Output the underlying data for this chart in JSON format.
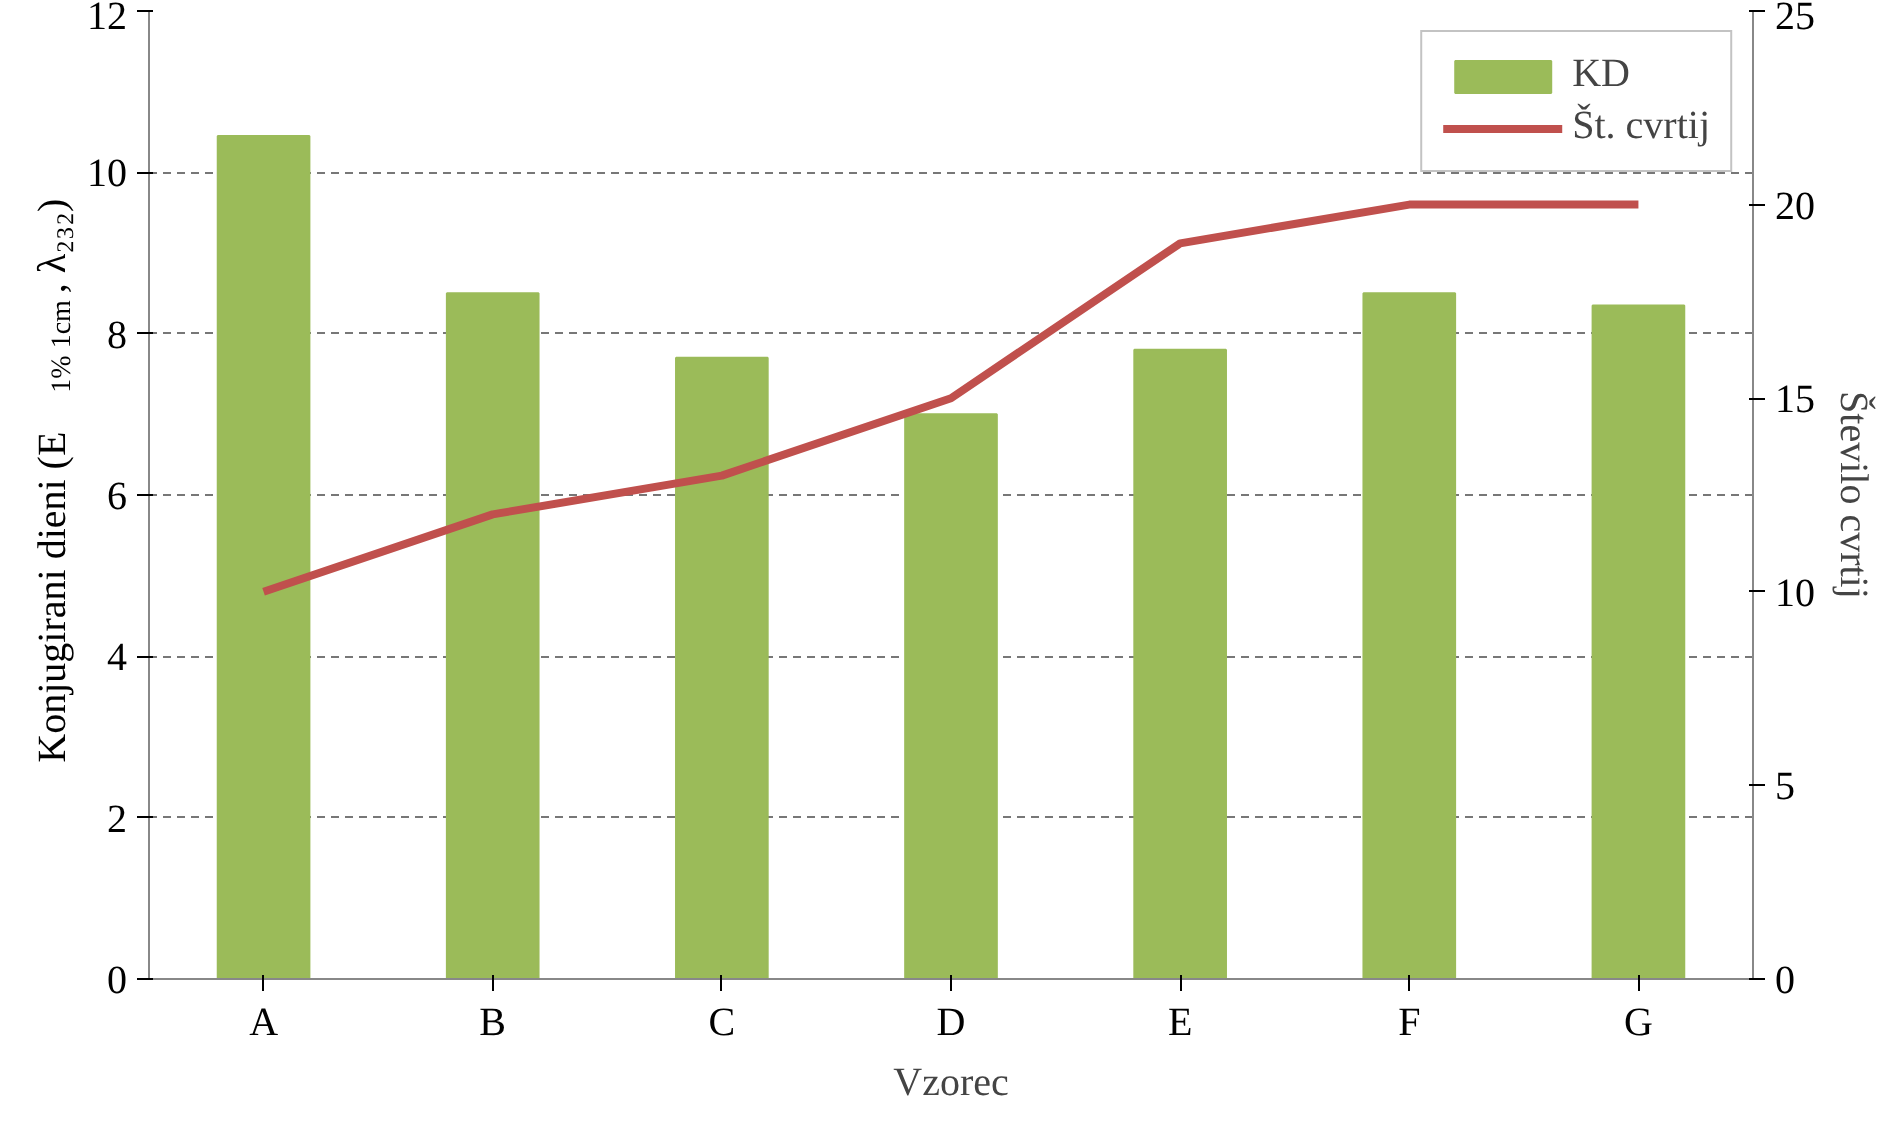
{
  "chart_data": {
    "type": "bar",
    "xlabel": "Vzorec",
    "ylabel": "Konjugirani dieni (E$_{1% 1cm}$, λ₂₃₂)",
    "y2label": "Število cvrtij",
    "categories": [
      "A",
      "B",
      "C",
      "D",
      "E",
      "F",
      "G"
    ],
    "series": [
      {
        "name": "KD",
        "color": "#9bbb59",
        "values": [
          10.45,
          8.5,
          7.7,
          7.0,
          7.8,
          8.5,
          8.35
        ]
      },
      {
        "name": "Št. cvrtij",
        "type": "line",
        "axis": "y2",
        "color": "#c0504d",
        "values": [
          10,
          12,
          13,
          15,
          19,
          20,
          20
        ]
      }
    ],
    "ylim": [
      0,
      12
    ],
    "yticks": [
      0,
      2,
      4,
      6,
      8,
      10,
      12
    ],
    "y2lim": [
      0,
      25
    ],
    "y2ticks": [
      0,
      5,
      10,
      15,
      20,
      25
    ],
    "grid": "y",
    "legend": "top right",
    "marker": "none",
    "line_style": "solid"
  }
}
